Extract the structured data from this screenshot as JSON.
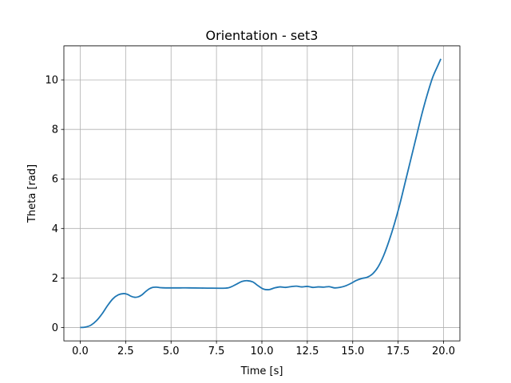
{
  "chart_data": {
    "type": "line",
    "title": "Orientation - set3",
    "xlabel": "Time [s]",
    "ylabel": "Theta [rad]",
    "xlim": [
      -0.9,
      20.9
    ],
    "ylim": [
      -0.54,
      11.37
    ],
    "xticks": [
      0.0,
      2.5,
      5.0,
      7.5,
      10.0,
      12.5,
      15.0,
      17.5,
      20.0
    ],
    "xtick_labels": [
      "0.0",
      "2.5",
      "5.0",
      "7.5",
      "10.0",
      "12.5",
      "15.0",
      "17.5",
      "20.0"
    ],
    "yticks": [
      0,
      2,
      4,
      6,
      8,
      10
    ],
    "ytick_labels": [
      "0",
      "2",
      "4",
      "6",
      "8",
      "10"
    ],
    "grid": true,
    "series": [
      {
        "color": "#1f77b4",
        "x": [
          0.0,
          0.3,
          0.6,
          0.9,
          1.2,
          1.5,
          1.8,
          2.1,
          2.4,
          2.6,
          2.8,
          3.0,
          3.2,
          3.4,
          3.6,
          3.8,
          4.0,
          4.2,
          4.4,
          4.7,
          5.0,
          5.5,
          6.0,
          7.0,
          8.0,
          8.3,
          8.6,
          8.9,
          9.2,
          9.5,
          9.8,
          10.1,
          10.4,
          10.7,
          11.0,
          11.3,
          11.6,
          11.9,
          12.2,
          12.5,
          12.8,
          13.1,
          13.4,
          13.7,
          14.0,
          14.3,
          14.6,
          14.9,
          15.2,
          15.5,
          15.8,
          16.1,
          16.4,
          16.7,
          17.0,
          17.3,
          17.6,
          17.9,
          18.2,
          18.5,
          18.8,
          19.1,
          19.4,
          19.7,
          19.85
        ],
        "y": [
          0.0,
          0.02,
          0.1,
          0.28,
          0.55,
          0.88,
          1.16,
          1.32,
          1.37,
          1.34,
          1.26,
          1.22,
          1.24,
          1.32,
          1.45,
          1.56,
          1.62,
          1.63,
          1.61,
          1.6,
          1.6,
          1.6,
          1.6,
          1.59,
          1.59,
          1.64,
          1.75,
          1.86,
          1.89,
          1.84,
          1.68,
          1.55,
          1.53,
          1.6,
          1.64,
          1.62,
          1.65,
          1.67,
          1.64,
          1.66,
          1.62,
          1.64,
          1.63,
          1.65,
          1.6,
          1.62,
          1.68,
          1.78,
          1.9,
          1.98,
          2.03,
          2.17,
          2.45,
          2.9,
          3.5,
          4.2,
          5.0,
          5.9,
          6.8,
          7.7,
          8.6,
          9.4,
          10.1,
          10.6,
          10.85
        ]
      }
    ]
  }
}
